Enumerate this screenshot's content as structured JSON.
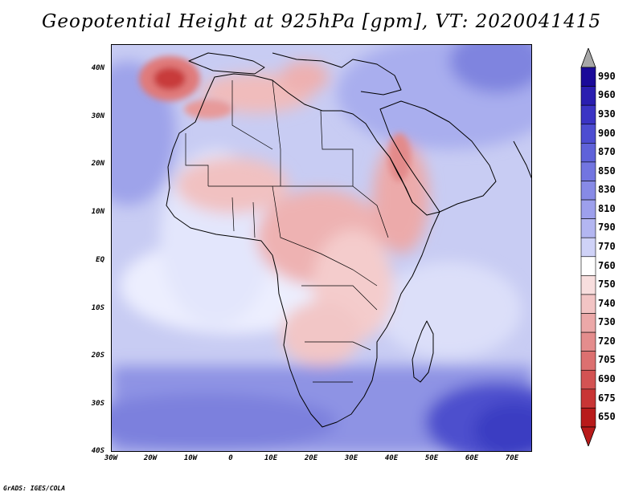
{
  "title": "Geopotential Height at 925hPa [gpm], VT: 2020041415",
  "axes": {
    "lat_labels": [
      "40N",
      "30N",
      "20N",
      "10N",
      "EQ",
      "10S",
      "20S",
      "30S",
      "40S"
    ],
    "lon_labels": [
      "30W",
      "20W",
      "10W",
      "0",
      "10E",
      "20E",
      "30E",
      "40E",
      "50E",
      "60E",
      "70E"
    ]
  },
  "colorbar": {
    "levels": [
      "990",
      "960",
      "930",
      "900",
      "870",
      "850",
      "830",
      "810",
      "790",
      "770",
      "760",
      "750",
      "740",
      "730",
      "720",
      "705",
      "690",
      "675",
      "650"
    ],
    "colors": [
      "#1a0a99",
      "#2a1eb0",
      "#3b34c4",
      "#4d4dd1",
      "#5f62d9",
      "#7275e0",
      "#878ae6",
      "#9da0ec",
      "#b3b6f1",
      "#cfd2f7",
      "#ffffff",
      "#f8dede",
      "#f2c4c4",
      "#eba8a8",
      "#e48d8d",
      "#dc7070",
      "#d35353",
      "#c83535",
      "#b81a1a"
    ]
  },
  "credit": "GrADS: IGES/COLA"
}
